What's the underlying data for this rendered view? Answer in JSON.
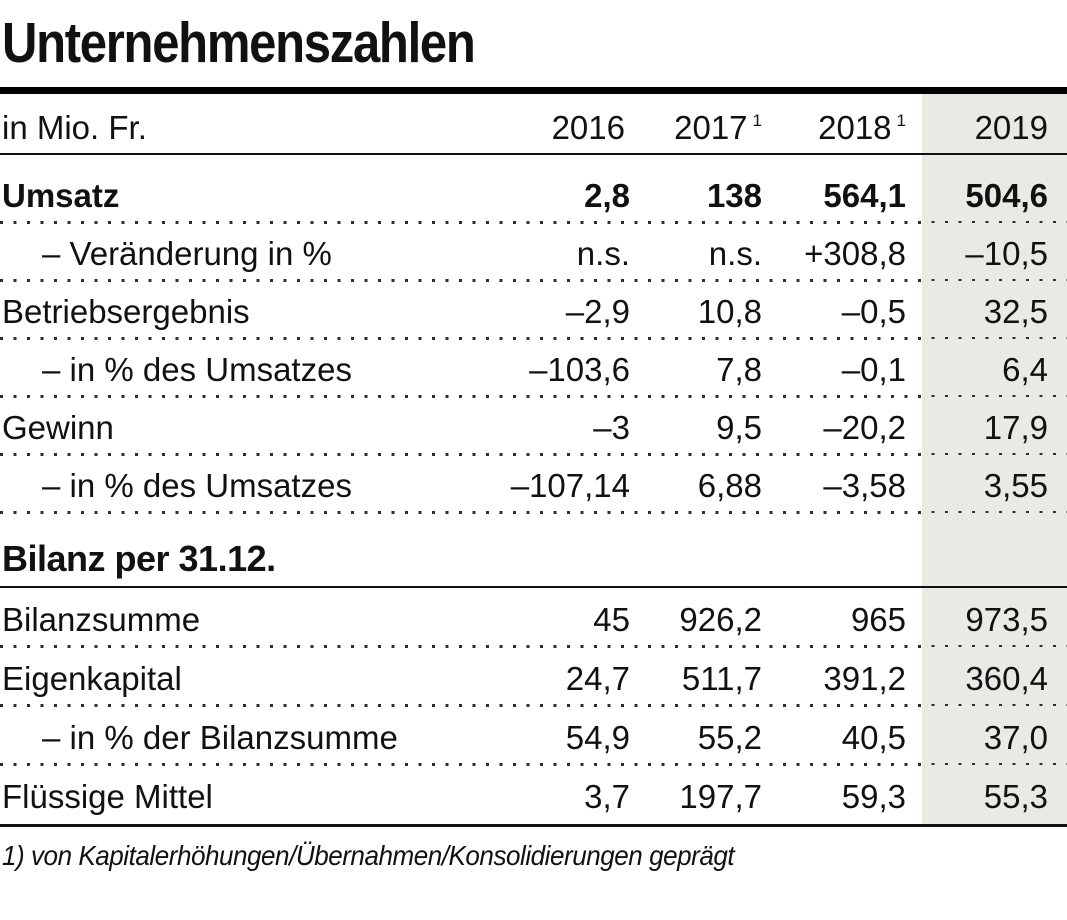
{
  "title": "Unternehmenszahlen",
  "table": {
    "unit_label": "in Mio. Fr.",
    "headers": [
      {
        "label": "2016",
        "footnote": ""
      },
      {
        "label": "2017",
        "footnote": "1"
      },
      {
        "label": "2018",
        "footnote": "1"
      },
      {
        "label": "2019",
        "footnote": ""
      }
    ],
    "rows": [
      {
        "label": "Umsatz",
        "values": [
          "2,8",
          "138",
          "564,1",
          "504,6"
        ]
      },
      {
        "label": "– Veränderung in %",
        "values": [
          "n.s.",
          "n.s.",
          "+308,8",
          "–10,5"
        ]
      },
      {
        "label": "Betriebsergebnis",
        "values": [
          "–2,9",
          "10,8",
          "–0,5",
          "32,5"
        ]
      },
      {
        "label": "– in % des Umsatzes",
        "values": [
          "–103,6",
          "7,8",
          "–0,1",
          "6,4"
        ]
      },
      {
        "label": "Gewinn",
        "values": [
          "–3",
          "9,5",
          "–20,2",
          "17,9"
        ]
      },
      {
        "label": "– in % des Umsatzes",
        "values": [
          "–107,14",
          "6,88",
          "–3,58",
          "3,55"
        ]
      },
      {
        "label": "Bilanz per 31.12.",
        "values": [
          "",
          "",
          "",
          ""
        ]
      },
      {
        "label": "Bilanzsumme",
        "values": [
          "45",
          "926,2",
          "965",
          "973,5"
        ]
      },
      {
        "label": "Eigenkapital",
        "values": [
          "24,7",
          "511,7",
          "391,2",
          "360,4"
        ]
      },
      {
        "label": "– in % der Bilanzsumme",
        "values": [
          "54,9",
          "55,2",
          "40,5",
          "37,0"
        ]
      },
      {
        "label": "Flüssige Mittel",
        "values": [
          "3,7",
          "197,7",
          "59,3",
          "55,3"
        ]
      }
    ]
  },
  "footnote": "1) von Kapitalerhöhungen/Übernahmen/Konsolidierungen geprägt",
  "colors": {
    "highlight_column": "#eae9e3",
    "text": "#111111",
    "rule": "#000000"
  },
  "chart_data": {
    "type": "table",
    "title": "Unternehmenszahlen",
    "unit": "in Mio. Fr.",
    "columns": [
      "2016",
      "2017¹",
      "2018¹",
      "2019"
    ],
    "highlighted_column": "2019",
    "rows": [
      {
        "label": "Umsatz",
        "values": [
          "2,8",
          "138",
          "564,1",
          "504,6"
        ]
      },
      {
        "label": "– Veränderung in %",
        "values": [
          "n.s.",
          "n.s.",
          "+308,8",
          "–10,5"
        ]
      },
      {
        "label": "Betriebsergebnis",
        "values": [
          "–2,9",
          "10,8",
          "–0,5",
          "32,5"
        ]
      },
      {
        "label": "– in % des Umsatzes",
        "values": [
          "–103,6",
          "7,8",
          "–0,1",
          "6,4"
        ]
      },
      {
        "label": "Gewinn",
        "values": [
          "–3",
          "9,5",
          "–20,2",
          "17,9"
        ]
      },
      {
        "label": "– in % des Umsatzes",
        "values": [
          "–107,14",
          "6,88",
          "–3,58",
          "3,55"
        ]
      },
      {
        "label": "Bilanz per 31.12.",
        "section": true,
        "values": []
      },
      {
        "label": "Bilanzsumme",
        "values": [
          "45",
          "926,2",
          "965",
          "973,5"
        ]
      },
      {
        "label": "Eigenkapital",
        "values": [
          "24,7",
          "511,7",
          "391,2",
          "360,4"
        ]
      },
      {
        "label": "– in % der Bilanzsumme",
        "values": [
          "54,9",
          "55,2",
          "40,5",
          "37,0"
        ]
      },
      {
        "label": "Flüssige Mittel",
        "values": [
          "3,7",
          "197,7",
          "59,3",
          "55,3"
        ]
      }
    ],
    "footnote": "1) von Kapitalerhöhungen/Übernahmen/Konsolidierungen geprägt"
  }
}
